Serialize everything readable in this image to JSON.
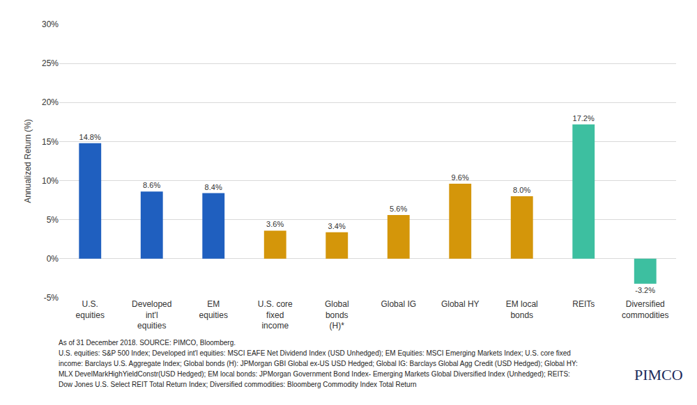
{
  "chart_data": {
    "type": "bar",
    "y_label": "Annualized Return (%)",
    "categories": [
      "U.S. equities",
      "Developed int'l equities",
      "EM equities",
      "U.S. core fixed income",
      "Global bonds (H)*",
      "Global IG",
      "Global HY",
      "EM local bonds",
      "REITs",
      "Diversified commodities"
    ],
    "values": [
      14.8,
      8.6,
      8.4,
      3.6,
      3.4,
      5.6,
      9.6,
      8.0,
      17.2,
      -3.2
    ],
    "value_labels": [
      "14.8%",
      "8.6%",
      "8.4%",
      "3.6%",
      "3.4%",
      "5.6%",
      "9.6%",
      "8.0%",
      "17.2%",
      "-3.2%"
    ],
    "colors": [
      "#1f5fbf",
      "#1f5fbf",
      "#1f5fbf",
      "#d4960a",
      "#d4960a",
      "#d4960a",
      "#d4960a",
      "#d4960a",
      "#3dbfa0",
      "#3dbfa0"
    ],
    "ylim": [
      -5,
      30
    ],
    "yticks": [
      {
        "value": -5,
        "label": "-5%"
      },
      {
        "value": 0,
        "label": "0%"
      },
      {
        "value": 5,
        "label": "5%"
      },
      {
        "value": 10,
        "label": "10%"
      },
      {
        "value": 15,
        "label": "15%"
      },
      {
        "value": 20,
        "label": "20%"
      },
      {
        "value": 25,
        "label": "25%"
      },
      {
        "value": 30,
        "label": "30%"
      }
    ],
    "grid": true,
    "data_labels": true,
    "footnote": [
      "As of 31 December 2018. SOURCE: PIMCO, Bloomberg.",
      "U.S. equities: S&P 500 Index; Developed int'l equities: MSCI EAFE Net Dividend Index (USD Unhedged); EM Equities: MSCI Emerging Markets Index; U.S. core fixed",
      "income: Barclays U.S. Aggregate Index; Global bonds (H): JPMorgan GBI Global ex-US USD Hedged; Global IG: Barclays Global Agg Credit (USD Hedged); Global HY:",
      "MLX DevelMarkHighYieldConstr(USD Hedged); EM local bonds: JPMorgan Government Bond Index- Emerging Markets Global Diversified Index (Unhedged); REITS:",
      "Dow Jones U.S. Select REIT Total Return Index; Diversified commodities: Bloomberg Commodity Index Total Return"
    ],
    "logo": "PIMCO"
  }
}
